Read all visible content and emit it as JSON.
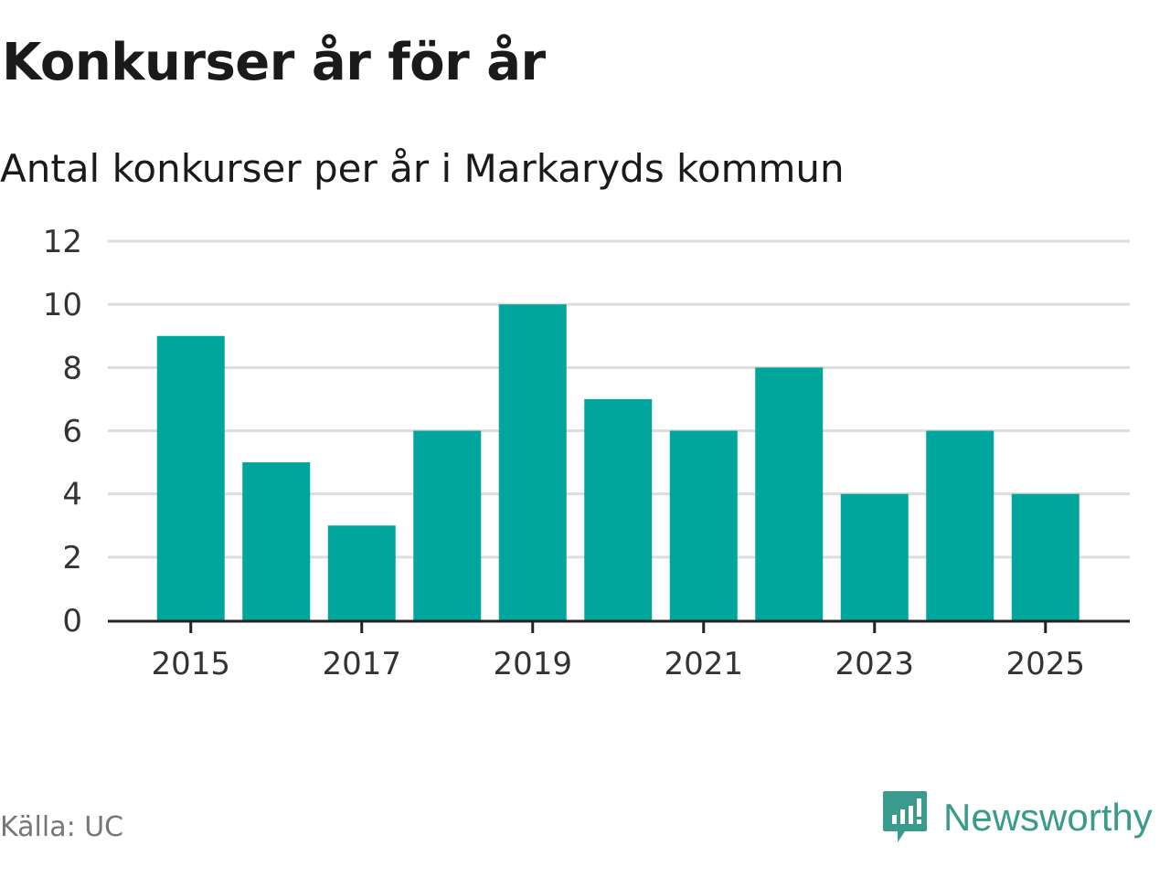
{
  "header": {
    "title": "Konkurser år för år",
    "subtitle": "Antal konkurser per år i Markaryds kommun"
  },
  "footer": {
    "source": "Källa: UC",
    "brand": "Newsworthy",
    "brand_icon": "newsworthy-logo-icon"
  },
  "colors": {
    "bar": "#00a59b",
    "grid": "#dddddd",
    "axis": "#222222",
    "brand": "#3a9a8c"
  },
  "chart_data": {
    "type": "bar",
    "categories": [
      "2015",
      "2016",
      "2017",
      "2018",
      "2019",
      "2020",
      "2021",
      "2022",
      "2023",
      "2024",
      "2025"
    ],
    "values": [
      9,
      5,
      3,
      6,
      10,
      7,
      6,
      8,
      4,
      6,
      4
    ],
    "x_tick_labels": [
      "2015",
      "2017",
      "2019",
      "2021",
      "2023",
      "2025"
    ],
    "y_ticks": [
      0,
      2,
      4,
      6,
      8,
      10,
      12
    ],
    "ylim": [
      0,
      12
    ],
    "grid": true,
    "legend": "none"
  }
}
